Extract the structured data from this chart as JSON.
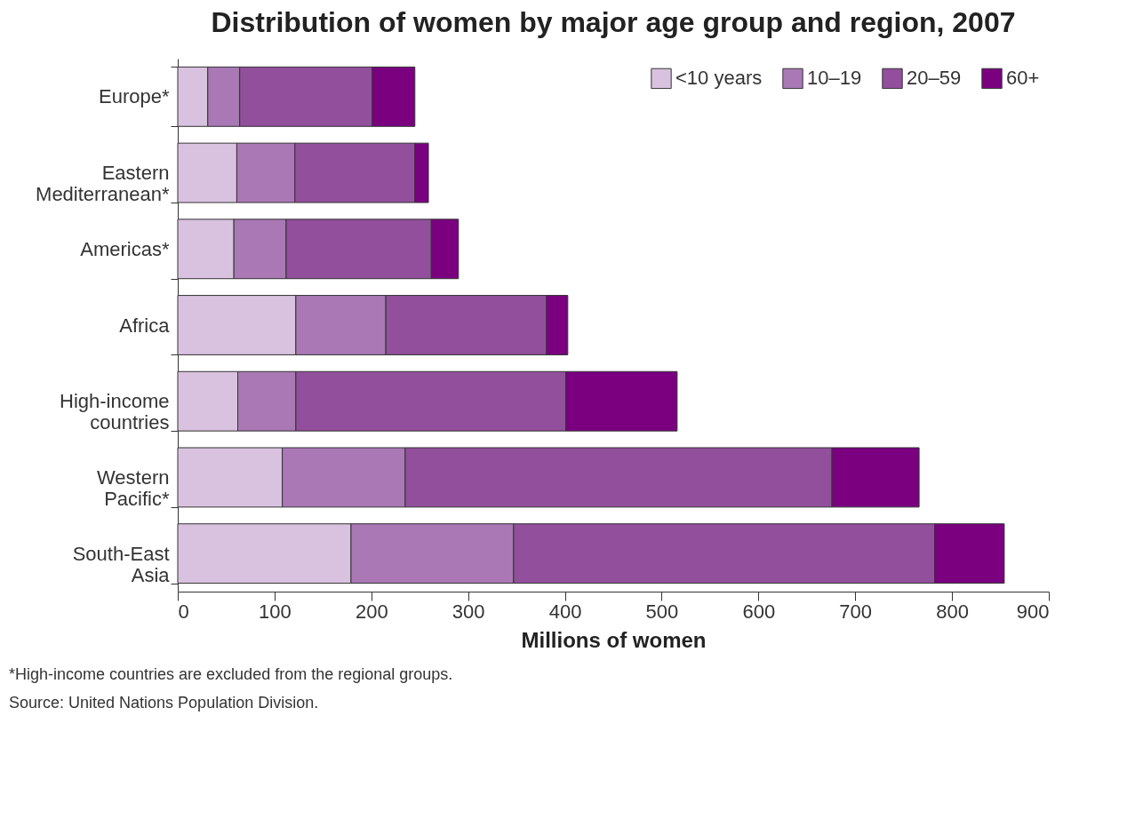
{
  "chart_data": {
    "type": "bar",
    "orientation": "horizontal",
    "stacked": true,
    "title": "Distribution of women by major age group and region, 2007",
    "xlabel": "Millions of women",
    "categories": [
      "Europe*",
      "Eastern Mediterranean*",
      "Americas*",
      "Africa",
      "High-income countries",
      "Western Pacific*",
      "South-East Asia"
    ],
    "series": [
      {
        "name": "<10 years",
        "color": "#d8c2df",
        "values": [
          31,
          61,
          58,
          122,
          62,
          108,
          179
        ]
      },
      {
        "name": "10–19",
        "color": "#a978b5",
        "values": [
          33,
          60,
          54,
          93,
          60,
          127,
          168
        ]
      },
      {
        "name": "20–59",
        "color": "#924f9c",
        "values": [
          137,
          124,
          150,
          166,
          279,
          441,
          435
        ]
      },
      {
        "name": "60+",
        "color": "#7a0080",
        "values": [
          44,
          14,
          28,
          22,
          115,
          90,
          72
        ]
      }
    ],
    "xlim": [
      0,
      900
    ],
    "xticks": [
      0,
      100,
      200,
      300,
      400,
      500,
      600,
      700,
      800,
      900
    ],
    "grid": false,
    "legend": "top right",
    "annotations": [
      "*High-income countries are excluded from the regional groups.",
      "Source: United Nations Population Division."
    ]
  }
}
